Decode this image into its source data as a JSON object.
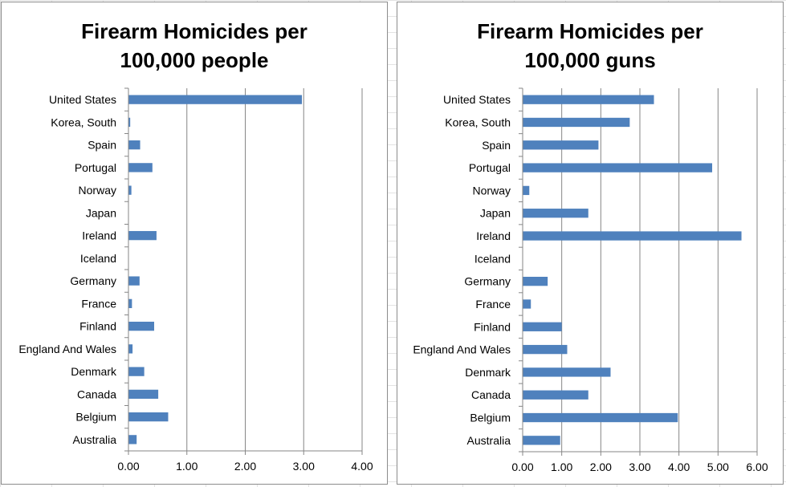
{
  "colors": {
    "bar": "#4f81bd",
    "gridline": "#868686",
    "axis": "#868686",
    "sheet_grid": "#e3e3e3"
  },
  "chart_data": [
    {
      "type": "bar",
      "orientation": "horizontal",
      "title_lines": [
        "Firearm Homicides per",
        "100,000 people"
      ],
      "categories": [
        "United States",
        "Korea, South",
        "Spain",
        "Portugal",
        "Norway",
        "Japan",
        "Ireland",
        "Iceland",
        "Germany",
        "France",
        "Finland",
        "England And Wales",
        "Denmark",
        "Canada",
        "Belgium",
        "Australia"
      ],
      "values": [
        2.97,
        0.03,
        0.2,
        0.41,
        0.05,
        0.0,
        0.48,
        0.0,
        0.19,
        0.06,
        0.44,
        0.07,
        0.27,
        0.51,
        0.68,
        0.14
      ],
      "xlim": [
        0,
        4
      ],
      "x_ticks": [
        "0.00",
        "1.00",
        "2.00",
        "3.00",
        "4.00"
      ],
      "xlabel": "",
      "ylabel": "",
      "grid": "vertical",
      "legend": "none"
    },
    {
      "type": "bar",
      "orientation": "horizontal",
      "title_lines": [
        "Firearm Homicides per",
        "100,000 guns"
      ],
      "categories": [
        "United States",
        "Korea, South",
        "Spain",
        "Portugal",
        "Norway",
        "Japan",
        "Ireland",
        "Iceland",
        "Germany",
        "France",
        "Finland",
        "England And Wales",
        "Denmark",
        "Canada",
        "Belgium",
        "Australia"
      ],
      "values": [
        3.36,
        2.74,
        1.94,
        4.85,
        0.17,
        1.68,
        5.6,
        0.0,
        0.64,
        0.21,
        1.0,
        1.14,
        2.25,
        1.68,
        3.97,
        0.96
      ],
      "xlim": [
        0,
        6
      ],
      "x_ticks": [
        "0.00",
        "1.00",
        "2.00",
        "3.00",
        "4.00",
        "5.00",
        "6.00"
      ],
      "xlabel": "",
      "ylabel": "",
      "grid": "vertical",
      "legend": "none"
    }
  ]
}
